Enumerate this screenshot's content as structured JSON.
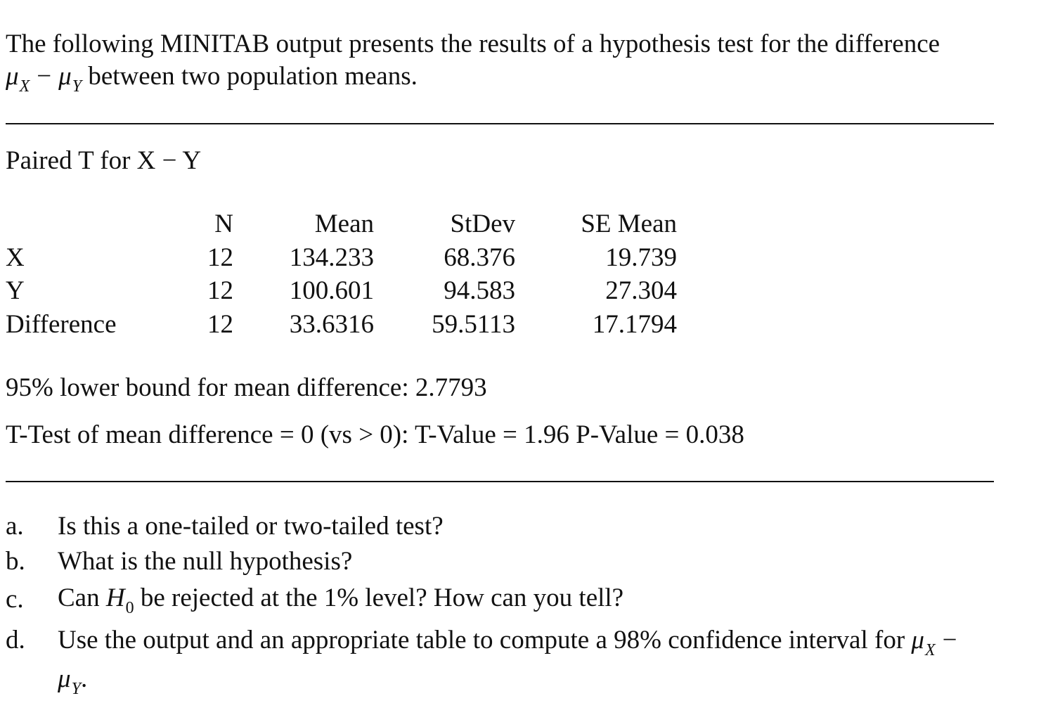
{
  "intro": {
    "line1": "The following MINITAB output presents the results of a hypothesis test for the difference",
    "line2_suffix": " between two population means."
  },
  "math": {
    "mu": "μ",
    "x": "X",
    "y": "Y",
    "minus": "−",
    "h": "H",
    "zero": "0"
  },
  "output": {
    "title": "Paired T for X − Y",
    "headers": [
      "N",
      "Mean",
      "StDev",
      "SE Mean"
    ],
    "rows": [
      {
        "label": "X",
        "n": "12",
        "mean": "134.233",
        "stdev": "68.376",
        "se_mean": "19.739"
      },
      {
        "label": "Y",
        "n": "12",
        "mean": "100.601",
        "stdev": "94.583",
        "se_mean": "27.304"
      },
      {
        "label": "Difference",
        "n": "12",
        "mean": "33.6316",
        "stdev": "59.5113",
        "se_mean": "17.1794"
      }
    ],
    "lower_bound": "95% lower bound for mean difference: 2.7793",
    "ttest": "T-Test of mean difference = 0 (vs > 0): T-Value = 1.96 P-Value = 0.038"
  },
  "questions": [
    {
      "letter": "a.",
      "text": "Is this a one-tailed or two-tailed test?"
    },
    {
      "letter": "b.",
      "text": "What is the null hypothesis?"
    },
    {
      "letter": "c.",
      "prefix": "Can ",
      "suffix": " be rejected at the 1% level? How can you tell?"
    },
    {
      "letter": "d.",
      "text": "Use the output and an appropriate table to compute a 98% confidence interval for ",
      "end": "."
    }
  ]
}
